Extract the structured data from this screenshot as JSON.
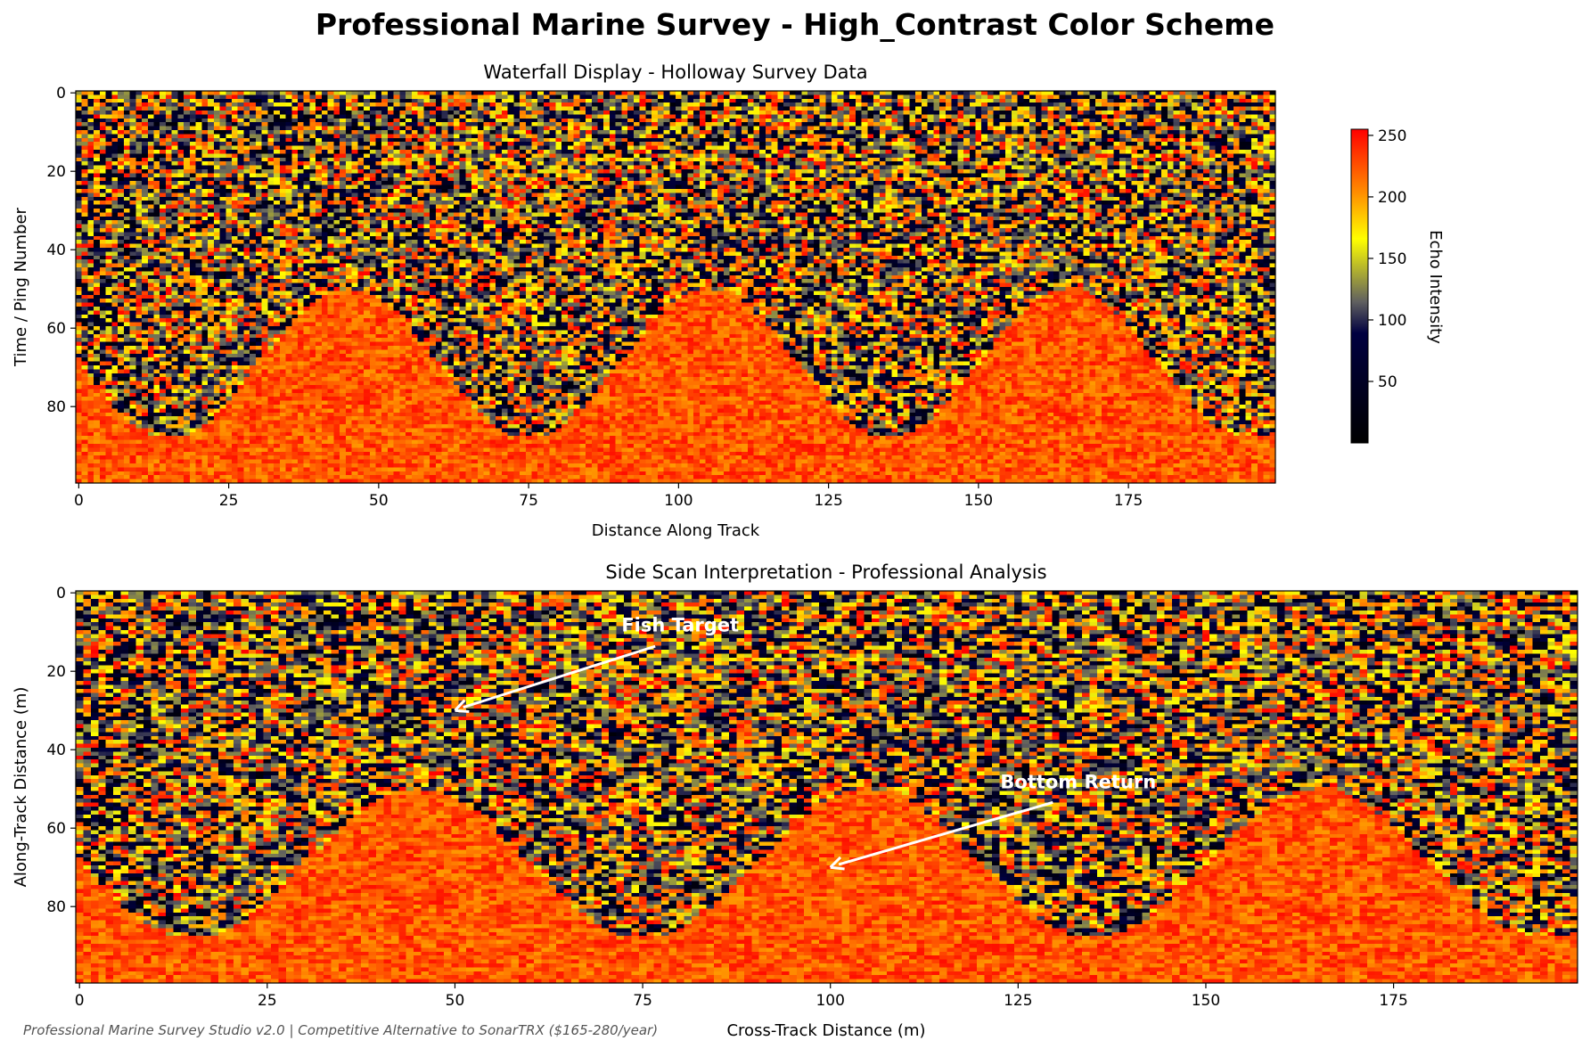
{
  "figure": {
    "suptitle": "Professional Marine Survey - High_Contrast Color Scheme",
    "footer": "Professional Marine Survey Studio v2.0 | Competitive Alternative to SonarTRX ($165-280/year)"
  },
  "colormap": {
    "name": "high_contrast",
    "stops": [
      "#000000",
      "#000040",
      "#606060",
      "#ffff00",
      "#ff8c00",
      "#ff0000"
    ],
    "positions": [
      0.0,
      0.35,
      0.45,
      0.65,
      0.8,
      1.0
    ]
  },
  "chart_data": [
    {
      "type": "heatmap",
      "title": "Waterfall Display - Holloway Survey Data",
      "xlabel": "Distance Along Track",
      "ylabel": "Time / Ping Number",
      "xlim": [
        0,
        199
      ],
      "ylim": [
        99,
        0
      ],
      "xticks": [
        0,
        25,
        50,
        75,
        100,
        125,
        150,
        175
      ],
      "yticks": [
        0,
        20,
        40,
        60,
        80
      ],
      "grid": false,
      "data_description": "200 x 100 noisy echo intensity grid; strong seafloor return below a sinusoidal boundary (period ~60, minimum depth ~50, maximum depth ~88)",
      "bottom_profile": {
        "period": 60,
        "phase_x": 15,
        "min_depth": 50,
        "max_depth": 88
      },
      "colorbar": {
        "label": "Echo Intensity",
        "ticks": [
          50,
          100,
          150,
          200,
          250
        ],
        "range": [
          0,
          255
        ]
      }
    },
    {
      "type": "heatmap",
      "title": "Side Scan Interpretation - Professional Analysis",
      "xlabel": "Cross-Track Distance (m)",
      "ylabel": "Along-Track Distance (m)",
      "xlim": [
        0,
        199
      ],
      "ylim": [
        99,
        0
      ],
      "xticks": [
        0,
        25,
        50,
        75,
        100,
        125,
        150,
        175
      ],
      "yticks": [
        0,
        20,
        40,
        60,
        80
      ],
      "grid": false,
      "annotations": [
        {
          "text": "Fish Target",
          "xy": [
            50,
            30
          ],
          "xytext": [
            80,
            8
          ]
        },
        {
          "text": "Bottom Return",
          "xy": [
            100,
            70
          ],
          "xytext": [
            133,
            48
          ]
        }
      ]
    }
  ]
}
